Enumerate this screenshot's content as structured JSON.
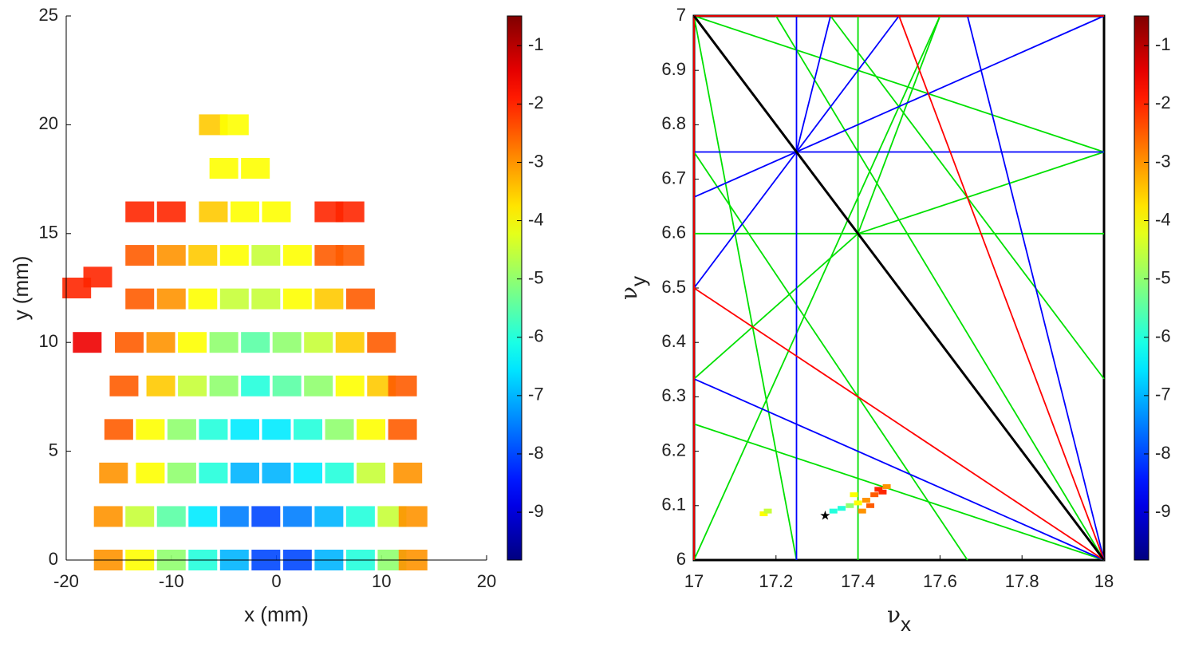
{
  "chart_data": [
    {
      "type": "scatter",
      "xlabel": "x (mm)",
      "ylabel": "y (mm)",
      "xlim": [
        -20,
        20
      ],
      "ylim": [
        0,
        25
      ],
      "xticks": [
        -20,
        -10,
        0,
        10,
        20
      ],
      "yticks": [
        0,
        5,
        10,
        15,
        20,
        25
      ],
      "x": [
        -16,
        -13,
        -10,
        -7,
        -4,
        -1,
        2,
        5,
        8,
        11,
        13,
        -16,
        -13,
        -10,
        -7,
        -4,
        -1,
        2,
        5,
        8,
        11,
        13,
        -15.5,
        -12,
        -9,
        -6,
        -3,
        0,
        3,
        6,
        9,
        12.5,
        -15,
        -12,
        -9,
        -6,
        -3,
        0,
        3,
        6,
        9,
        12,
        -14.5,
        -11,
        -8,
        -5,
        -2,
        1,
        4,
        7,
        10,
        12,
        -14,
        -11,
        -8,
        -5,
        -2,
        1,
        4,
        7,
        10,
        -13,
        -10,
        -7,
        -4,
        -1,
        2,
        5,
        8,
        -13,
        -10,
        -7,
        -4,
        -1,
        2,
        5,
        7,
        -13,
        -10,
        -6,
        -3,
        0,
        5,
        7,
        -5,
        -2,
        -6,
        -4,
        -18,
        -19,
        -17
      ],
      "y": [
        0,
        0,
        0,
        0,
        0,
        0,
        0,
        0,
        0,
        0,
        0,
        2,
        2,
        2,
        2,
        2,
        2,
        2,
        2,
        2,
        2,
        2,
        4,
        4,
        4,
        4,
        4,
        4,
        4,
        4,
        4,
        4,
        6,
        6,
        6,
        6,
        6,
        6,
        6,
        6,
        6,
        6,
        8,
        8,
        8,
        8,
        8,
        8,
        8,
        8,
        8,
        8,
        10,
        10,
        10,
        10,
        10,
        10,
        10,
        10,
        10,
        12,
        12,
        12,
        12,
        12,
        12,
        12,
        12,
        14,
        14,
        14,
        14,
        14,
        14,
        14,
        14,
        16,
        16,
        16,
        16,
        16,
        16,
        16,
        18,
        18,
        20,
        20,
        10,
        12.5,
        13
      ],
      "c": [
        -3,
        -4,
        -5,
        -6,
        -7,
        -8,
        -8,
        -7,
        -6,
        -5,
        -3,
        -3,
        -4.5,
        -5.5,
        -6.5,
        -7.5,
        -8,
        -7.5,
        -7,
        -6,
        -4.5,
        -3,
        -3,
        -4,
        -5,
        -6,
        -7,
        -7,
        -6.5,
        -6,
        -4.5,
        -3,
        -2.5,
        -4,
        -5,
        -6,
        -6.5,
        -6.5,
        -6,
        -5,
        -4,
        -2.5,
        -2.5,
        -3.5,
        -4.5,
        -5,
        -6,
        -5.5,
        -5,
        -4,
        -3.5,
        -2.5,
        -2.5,
        -3,
        -4,
        -5,
        -5.5,
        -5,
        -4.5,
        -3.5,
        -2.5,
        -2.5,
        -3,
        -4,
        -4.5,
        -4.5,
        -4,
        -3.5,
        -2.5,
        -2.5,
        -3,
        -3.5,
        -4,
        -4.5,
        -4,
        -2.5,
        -2.5,
        -2,
        -2,
        -3.5,
        -4,
        -4,
        -2,
        -2,
        -4,
        -4,
        -3.5,
        -4,
        -1.5,
        -2,
        -2
      ],
      "colorbar": {
        "clim": [
          -9.82,
          -0.49
        ],
        "ticks": [
          -1,
          -2,
          -3,
          -4,
          -5,
          -6,
          -7,
          -8,
          -9
        ]
      }
    },
    {
      "type": "tune",
      "xlabel": [
        "ν",
        "x"
      ],
      "ylabel": [
        "ν",
        "y"
      ],
      "xlim": [
        17,
        18
      ],
      "ylim": [
        6,
        7
      ],
      "xticks": [
        17,
        17.2,
        17.4,
        17.6,
        17.8,
        18
      ],
      "yticks": [
        6,
        6.1,
        6.2,
        6.3,
        6.4,
        6.5,
        6.6,
        6.7,
        6.8,
        6.9,
        7
      ],
      "lines": [
        {
          "color": "#00e000",
          "x": [
            17.4,
            17.4
          ],
          "y": [
            6,
            7
          ]
        },
        {
          "color": "#00e000",
          "x": [
            17,
            18
          ],
          "y": [
            6.6,
            6.6
          ]
        },
        {
          "color": "#00e000",
          "x": [
            17,
            18
          ],
          "y": [
            7,
            6.75
          ]
        },
        {
          "color": "#00e000",
          "x": [
            17,
            18
          ],
          "y": [
            6.25,
            6
          ]
        },
        {
          "color": "#00e000",
          "x": [
            17,
            17.25
          ],
          "y": [
            7,
            6
          ]
        },
        {
          "color": "#00e000",
          "x": [
            17.4,
            18
          ],
          "y": [
            6.6,
            6.75
          ]
        },
        {
          "color": "#00e000",
          "x": [
            17.4,
            18
          ],
          "y": [
            6.6,
            6
          ]
        },
        {
          "color": "#00e000",
          "x": [
            17.4,
            17.6
          ],
          "y": [
            6.6,
            7
          ]
        },
        {
          "color": "#00e000",
          "x": [
            17,
            17.4
          ],
          "y": [
            6.333,
            6.6
          ]
        },
        {
          "color": "#00e000",
          "x": [
            17,
            17.6
          ],
          "y": [
            6,
            7
          ]
        },
        {
          "color": "#00e000",
          "x": [
            17.2,
            18
          ],
          "y": [
            7,
            6
          ]
        },
        {
          "color": "#00e000",
          "x": [
            17,
            17.667
          ],
          "y": [
            6.75,
            6
          ]
        },
        {
          "color": "#00e000",
          "x": [
            17.333,
            18
          ],
          "y": [
            7,
            6.333
          ]
        },
        {
          "color": "#0000ff",
          "x": [
            17.25,
            17.25
          ],
          "y": [
            6,
            7
          ]
        },
        {
          "color": "#0000ff",
          "x": [
            17,
            18
          ],
          "y": [
            6.75,
            6.75
          ]
        },
        {
          "color": "#0000ff",
          "x": [
            17,
            18
          ],
          "y": [
            6.667,
            7
          ]
        },
        {
          "color": "#0000ff",
          "x": [
            17,
            18
          ],
          "y": [
            6.333,
            6
          ]
        },
        {
          "color": "#0000ff",
          "x": [
            17,
            17.5
          ],
          "y": [
            6.5,
            7
          ]
        },
        {
          "color": "#0000ff",
          "x": [
            17.25,
            17.333
          ],
          "y": [
            6.75,
            7
          ]
        },
        {
          "color": "#0000ff",
          "x": [
            17.667,
            18
          ],
          "y": [
            7,
            6
          ]
        },
        {
          "color": "#ff0000",
          "x": [
            17,
            18
          ],
          "y": [
            7,
            7
          ]
        },
        {
          "color": "#ff0000",
          "x": [
            17,
            17
          ],
          "y": [
            6,
            7
          ]
        },
        {
          "color": "#ff0000",
          "x": [
            17,
            18
          ],
          "y": [
            6.5,
            6
          ]
        },
        {
          "color": "#ff0000",
          "x": [
            17.5,
            18
          ],
          "y": [
            7,
            6
          ]
        },
        {
          "color": "#000000",
          "x": [
            17,
            18
          ],
          "y": [
            7,
            6
          ]
        }
      ],
      "x": [
        17.17,
        17.18,
        17.34,
        17.36,
        17.38,
        17.4,
        17.42,
        17.44,
        17.45,
        17.46,
        17.47,
        17.43,
        17.41,
        17.39
      ],
      "y": [
        6.085,
        6.09,
        6.09,
        6.095,
        6.1,
        6.105,
        6.11,
        6.12,
        6.13,
        6.125,
        6.135,
        6.1,
        6.09,
        6.12
      ],
      "c": [
        -4,
        -4.5,
        -6,
        -6,
        -5,
        -4,
        -3,
        -2.5,
        -2,
        -2,
        -3,
        -2.5,
        -3,
        -4
      ],
      "marker": {
        "x": 17.32,
        "y": 6.08
      },
      "colorbar": {
        "clim": [
          -9.82,
          -0.49
        ],
        "ticks": [
          -1,
          -2,
          -3,
          -4,
          -5,
          -6,
          -7,
          -8,
          -9
        ]
      }
    }
  ]
}
